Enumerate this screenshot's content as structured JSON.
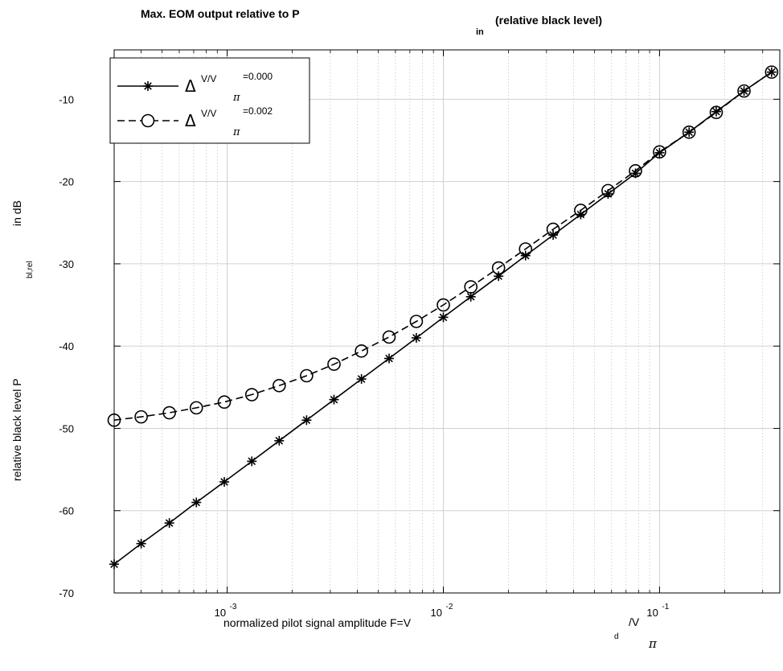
{
  "chart_data": {
    "type": "line",
    "title": {
      "main": "Max. EOM output relative to P",
      "subscript": "in",
      "suffix": "(relative black level)"
    },
    "xlabel": {
      "main": "normalized pilot signal amplitude F=V",
      "subscript": "d",
      "slash": "/V",
      "pi": "π"
    },
    "ylabel": {
      "main": "relative black level P",
      "subscript": "bl,rel",
      "suffix": "in dB"
    },
    "x_scale": "log",
    "xlim": [
      0.0003,
      0.36
    ],
    "ylim": [
      -70,
      -4
    ],
    "x_ticks": [
      {
        "value": 0.001,
        "base": "10",
        "exp": "-3"
      },
      {
        "value": 0.01,
        "base": "10",
        "exp": "-2"
      },
      {
        "value": 0.1,
        "base": "10",
        "exp": "-1"
      }
    ],
    "y_ticks": [
      -70,
      -60,
      -50,
      -40,
      -30,
      -20,
      -10
    ],
    "grid": true,
    "legend_position": "top-left",
    "legend": [
      {
        "delta": "Δ",
        "sup": "V/V",
        "sub": "π",
        "value": "=0.000",
        "marker": "star",
        "dash": "solid"
      },
      {
        "delta": "Δ",
        "sup": "V/V",
        "sub": "π",
        "value": "=0.002",
        "marker": "circle",
        "dash": "dashed"
      }
    ],
    "x": [
      0.0003,
      0.0004,
      0.00054,
      0.00072,
      0.00097,
      0.0013,
      0.00174,
      0.00233,
      0.00312,
      0.00418,
      0.00561,
      0.0075,
      0.01,
      0.0134,
      0.018,
      0.024,
      0.0322,
      0.0432,
      0.0578,
      0.0774,
      0.1,
      0.137,
      0.183,
      0.246,
      0.33
    ],
    "series": [
      {
        "values": [
          -66.5,
          -64.0,
          -61.5,
          -59.0,
          -56.5,
          -54.0,
          -51.5,
          -49.0,
          -46.5,
          -44.0,
          -41.5,
          -39.0,
          -36.5,
          -34.0,
          -31.5,
          -29.0,
          -26.5,
          -24.0,
          -21.5,
          -19.0,
          -16.5,
          -14.0,
          -11.5,
          -9.0,
          -6.7
        ]
      },
      {
        "values": [
          -49.0,
          -48.6,
          -48.1,
          -47.5,
          -46.8,
          -45.9,
          -44.8,
          -43.6,
          -42.2,
          -40.6,
          -38.9,
          -37.0,
          -35.0,
          -32.8,
          -30.5,
          -28.2,
          -25.8,
          -23.5,
          -21.1,
          -18.7,
          -16.4,
          -14.0,
          -11.6,
          -9.0,
          -6.7
        ]
      }
    ]
  }
}
